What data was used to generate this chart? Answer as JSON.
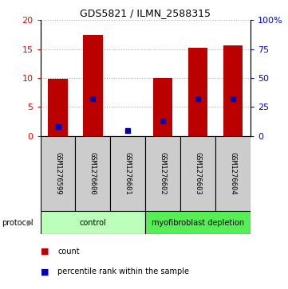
{
  "title": "GDS5821 / ILMN_2588315",
  "samples": [
    "GSM1276599",
    "GSM1276600",
    "GSM1276601",
    "GSM1276602",
    "GSM1276603",
    "GSM1276604"
  ],
  "counts": [
    9.8,
    17.5,
    0.0,
    10.0,
    15.2,
    15.7
  ],
  "percentile_ranks": [
    8.0,
    32.0,
    4.5,
    12.5,
    32.0,
    32.0
  ],
  "ylim_left": [
    0,
    20
  ],
  "ylim_right": [
    0,
    100
  ],
  "yticks_left": [
    0,
    5,
    10,
    15,
    20
  ],
  "yticks_right": [
    0,
    25,
    50,
    75,
    100
  ],
  "ytick_labels_right": [
    "0",
    "25",
    "50",
    "75",
    "100%"
  ],
  "bar_color": "#bb0000",
  "blue_color": "#0000bb",
  "grid_color": "#aaaaaa",
  "protocol_groups": [
    {
      "label": "control",
      "start": 0,
      "end": 2,
      "color": "#bbffbb"
    },
    {
      "label": "myofibroblast depletion",
      "start": 3,
      "end": 5,
      "color": "#55ee55"
    }
  ],
  "protocol_label": "protocol",
  "legend_items": [
    {
      "label": "count",
      "color": "#bb0000"
    },
    {
      "label": "percentile rank within the sample",
      "color": "#0000bb"
    }
  ],
  "sample_box_color": "#cccccc",
  "bar_width": 0.55
}
